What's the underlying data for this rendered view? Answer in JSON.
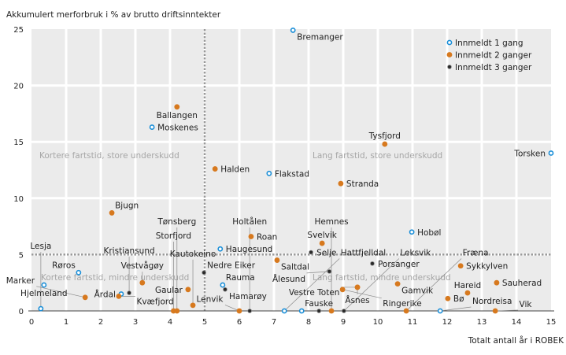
{
  "chart_data": {
    "type": "scatter",
    "ylabel": "Akkumulert merforbruk i % av brutto driftsinntekter",
    "xlabel": "Totalt antall år i ROBEK",
    "xlim": [
      0,
      15
    ],
    "ylim": [
      0,
      25
    ],
    "xticks": [
      0,
      1,
      2,
      3,
      4,
      5,
      6,
      7,
      8,
      9,
      10,
      11,
      12,
      13,
      14,
      15
    ],
    "yticks": [
      0,
      5,
      10,
      15,
      20,
      25
    ],
    "reference_lines": {
      "x": 5,
      "y": 5
    },
    "grid": true,
    "legend_position": "top-right",
    "quadrant_labels": {
      "top_left": "Kortere fartstid, store underskudd",
      "top_right": "Lang fartstid, store underskudd",
      "bottom_left": "Kortere fartstid, mindre underskudd",
      "bottom_right": "Lang fartstid, mindre underskudd"
    },
    "series": [
      {
        "name": "Innmeldt 1 gang",
        "color": "#1b8fd8",
        "style": "ring"
      },
      {
        "name": "Innmeldt 2 ganger",
        "color": "#d7791e",
        "style": "dot"
      },
      {
        "name": "Innmeldt 3 ganger",
        "color": "#2a2a2a",
        "style": "dot"
      }
    ],
    "points": [
      {
        "label": "Bremanger",
        "x": 7.55,
        "y": 24.9,
        "s": 0,
        "pos": "below-right"
      },
      {
        "label": "Ballangen",
        "x": 4.2,
        "y": 18.1,
        "s": 1,
        "pos": "below"
      },
      {
        "label": "Moskenes",
        "x": 3.48,
        "y": 16.3,
        "s": 0,
        "pos": "right"
      },
      {
        "label": "Tysfjord",
        "x": 10.2,
        "y": 14.8,
        "s": 1,
        "pos": "above"
      },
      {
        "label": "Torsken",
        "x": 15,
        "y": 14.0,
        "s": 0,
        "pos": "left"
      },
      {
        "label": "Halden",
        "x": 5.3,
        "y": 12.6,
        "s": 1,
        "pos": "right"
      },
      {
        "label": "Flakstad",
        "x": 6.86,
        "y": 12.2,
        "s": 0,
        "pos": "right"
      },
      {
        "label": "Stranda",
        "x": 8.93,
        "y": 11.3,
        "s": 1,
        "pos": "right"
      },
      {
        "label": "Bjugn",
        "x": 2.32,
        "y": 8.7,
        "s": 1,
        "pos": "above-right"
      },
      {
        "label": "Hobøl",
        "x": 10.98,
        "y": 7.0,
        "s": 0,
        "pos": "right"
      },
      {
        "label": "Roan",
        "x": 6.34,
        "y": 6.6,
        "s": 1,
        "pos": "right"
      },
      {
        "label": "Svelvik",
        "x": 8.39,
        "y": 6.0,
        "s": 1,
        "pos": "above"
      },
      {
        "label": "Haugesund",
        "x": 5.45,
        "y": 5.5,
        "s": 0,
        "pos": "right"
      },
      {
        "label": "Selje",
        "x": 8.07,
        "y": 5.2,
        "s": 2,
        "pos": "above-left"
      },
      {
        "label": "Saltdal",
        "x": 7.09,
        "y": 4.5,
        "s": 1,
        "pos": "below-right"
      },
      {
        "label": "Porsanger",
        "x": 9.84,
        "y": 4.2,
        "s": 2,
        "pos": "right"
      },
      {
        "label": "Sykkylven",
        "x": 12.39,
        "y": 4.0,
        "s": 1,
        "pos": "right"
      },
      {
        "label": "Ålesund",
        "x": 8.6,
        "y": 3.5,
        "s": 2,
        "pos": "above-right"
      },
      {
        "label": "Røros",
        "x": 1.36,
        "y": 3.4,
        "s": 0,
        "pos": "above-left"
      },
      {
        "label": "Nedre Eiker",
        "x": 4.98,
        "y": 3.4,
        "s": 2,
        "pos": "above-right"
      },
      {
        "label": "Sauherad",
        "x": 13.43,
        "y": 2.5,
        "s": 1,
        "pos": "right"
      },
      {
        "label": "Rauma",
        "x": 5.52,
        "y": 2.3,
        "s": 0,
        "pos": "above-right"
      },
      {
        "label": "Hjelmeland",
        "x": 0.36,
        "y": 2.3,
        "s": 0,
        "pos": "below-right"
      },
      {
        "label": "Vestvågøy",
        "x": 3.2,
        "y": 2.5,
        "s": 1,
        "pos": "right"
      },
      {
        "label": "Gamvik",
        "x": 10.57,
        "y": 2.4,
        "s": 1,
        "pos": "below-right"
      },
      {
        "label": "Åsnes",
        "x": 9.41,
        "y": 2.1,
        "s": 1,
        "pos": "above-right"
      },
      {
        "label": "Vestre Toten",
        "x": 9.41,
        "y": 2.1,
        "s": 1,
        "pos": "below-right"
      },
      {
        "label": "Ringerike",
        "x": 8.98,
        "y": 1.9,
        "s": 1,
        "pos": "left"
      },
      {
        "label": "Gaular",
        "x": 4.52,
        "y": 1.9,
        "s": 1,
        "pos": "right"
      },
      {
        "label": "Hamarøy",
        "x": 5.59,
        "y": 1.9,
        "s": 2,
        "pos": "below-right"
      },
      {
        "label": "Kristiansund",
        "x": 2.82,
        "y": 1.6,
        "s": 2,
        "pos": "right"
      },
      {
        "label": "Hareid",
        "x": 12.59,
        "y": 1.6,
        "s": 1,
        "pos": "right"
      },
      {
        "label": "Årdal",
        "x": 2.59,
        "y": 1.5,
        "s": 0,
        "pos": "above-left"
      },
      {
        "label": "Marker",
        "x": 1.55,
        "y": 1.2,
        "s": 1,
        "pos": "below"
      },
      {
        "label": "Kvæfjord",
        "x": 2.52,
        "y": 1.3,
        "s": 1,
        "pos": "below"
      },
      {
        "label": "Bø",
        "x": 12.02,
        "y": 1.1,
        "s": 1,
        "pos": "right"
      },
      {
        "label": "Kautokeino",
        "x": 4.66,
        "y": 0.5,
        "s": 1,
        "pos": "above"
      },
      {
        "label": "Lesja",
        "x": 0.27,
        "y": 0.2,
        "s": 0,
        "pos": "right"
      },
      {
        "label": "Storfjord",
        "x": 4.1,
        "y": 0,
        "s": 1,
        "pos": "above-left2"
      },
      {
        "label": "Tønsberg",
        "x": 4.2,
        "y": 0,
        "s": 1,
        "pos": "above-left"
      },
      {
        "label": "Lenvik",
        "x": 6.0,
        "y": 0,
        "s": 1,
        "pos": "above-left"
      },
      {
        "label": "Holtålen",
        "x": 6.3,
        "y": 0,
        "s": 2,
        "pos": "above2"
      },
      {
        "label": "Hattfjelldal",
        "x": 7.3,
        "y": 0,
        "s": 0,
        "pos": "above-left2"
      },
      {
        "label": "",
        "x": 7.8,
        "y": 0,
        "s": 0,
        "pos": "none"
      },
      {
        "label": "Fauske",
        "x": 8.3,
        "y": 0,
        "s": 2,
        "pos": "above"
      },
      {
        "label": "Hemnes",
        "x": 8.66,
        "y": 0,
        "s": 1,
        "pos": "above2"
      },
      {
        "label": "Leksvik",
        "x": 9.02,
        "y": 0,
        "s": 2,
        "pos": "above-right"
      },
      {
        "label": "Fræna",
        "x": 10.82,
        "y": 0,
        "s": 1,
        "pos": "above-right"
      },
      {
        "label": "Nordreisa",
        "x": 11.8,
        "y": 0,
        "s": 0,
        "pos": "above"
      },
      {
        "label": "Vik",
        "x": 13.39,
        "y": 0,
        "s": 1,
        "pos": "above-right"
      }
    ]
  }
}
